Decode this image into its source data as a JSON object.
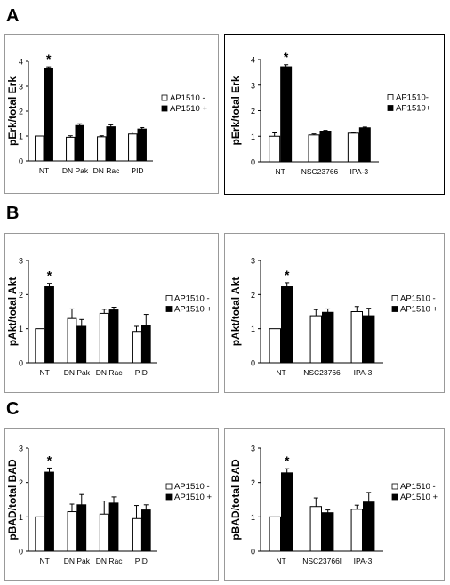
{
  "panels": [
    {
      "letter": "A"
    },
    {
      "letter": "B"
    },
    {
      "letter": "C"
    }
  ],
  "chart_data": [
    {
      "type": "bar",
      "ylabel": "pErk/total Erk",
      "ylim": [
        0,
        4
      ],
      "yticks": [
        0,
        1,
        2,
        3,
        4
      ],
      "categories": [
        "NT",
        "DN Pak",
        "DN Rac",
        "PID"
      ],
      "series": [
        {
          "name": "AP1510 -",
          "color": "#ffffff",
          "values": [
            1.0,
            0.95,
            0.97,
            1.08
          ],
          "errors": [
            0.0,
            0.06,
            0.04,
            0.08
          ]
        },
        {
          "name": "AP1510 +",
          "color": "#000000",
          "values": [
            3.7,
            1.42,
            1.37,
            1.28
          ],
          "errors": [
            0.08,
            0.07,
            0.08,
            0.06
          ]
        }
      ],
      "annotations": [
        {
          "category": "NT",
          "series": 1,
          "text": "*"
        }
      ],
      "legend": "right"
    },
    {
      "type": "bar",
      "ylabel": "pErk/total Erk",
      "ylim": [
        0,
        4
      ],
      "yticks": [
        0,
        1,
        2,
        3,
        4
      ],
      "categories": [
        "NT",
        "NSC23766",
        "IPA-3"
      ],
      "series": [
        {
          "name": "AP1510-",
          "color": "#ffffff",
          "values": [
            1.0,
            1.05,
            1.12
          ],
          "errors": [
            0.13,
            0.04,
            0.03
          ]
        },
        {
          "name": "AP1510+",
          "color": "#000000",
          "values": [
            3.72,
            1.2,
            1.33
          ],
          "errors": [
            0.08,
            0.03,
            0.03
          ]
        }
      ],
      "annotations": [
        {
          "category": "NT",
          "series": 1,
          "text": "*"
        }
      ],
      "legend": "right"
    },
    {
      "type": "bar",
      "ylabel": "pAkt/total Akt",
      "ylim": [
        0,
        3
      ],
      "yticks": [
        0,
        1,
        2,
        3
      ],
      "categories": [
        "NT",
        "DN Pak",
        "DN Rac",
        "PID"
      ],
      "series": [
        {
          "name": "AP1510 -",
          "color": "#ffffff",
          "values": [
            1.0,
            1.3,
            1.45,
            0.92
          ],
          "errors": [
            0.0,
            0.28,
            0.12,
            0.15
          ]
        },
        {
          "name": "AP1510 +",
          "color": "#000000",
          "values": [
            2.23,
            1.07,
            1.55,
            1.1
          ],
          "errors": [
            0.1,
            0.2,
            0.08,
            0.32
          ]
        }
      ],
      "annotations": [
        {
          "category": "NT",
          "series": 1,
          "text": "*"
        }
      ],
      "legend": "right"
    },
    {
      "type": "bar",
      "ylabel": "pAkt/total Akt",
      "ylim": [
        0,
        3
      ],
      "yticks": [
        0,
        1,
        2,
        3
      ],
      "categories": [
        "NT",
        "NSC23766",
        "IPA-3"
      ],
      "series": [
        {
          "name": "AP1510 -",
          "color": "#ffffff",
          "values": [
            1.0,
            1.38,
            1.5
          ],
          "errors": [
            0.0,
            0.18,
            0.15
          ]
        },
        {
          "name": "AP1510 +",
          "color": "#000000",
          "values": [
            2.23,
            1.48,
            1.38
          ],
          "errors": [
            0.12,
            0.1,
            0.22
          ]
        }
      ],
      "annotations": [
        {
          "category": "NT",
          "series": 1,
          "text": "*"
        }
      ],
      "legend": "right"
    },
    {
      "type": "bar",
      "ylabel": "pBAD/total BAD",
      "ylim": [
        0,
        3
      ],
      "yticks": [
        0,
        1,
        2,
        3
      ],
      "categories": [
        "NT",
        "DN Pak",
        "DN Rac",
        "PID"
      ],
      "series": [
        {
          "name": "AP1510 -",
          "color": "#ffffff",
          "values": [
            1.0,
            1.15,
            1.08,
            0.95
          ],
          "errors": [
            0.0,
            0.22,
            0.38,
            0.38
          ]
        },
        {
          "name": "AP1510 +",
          "color": "#000000",
          "values": [
            2.3,
            1.35,
            1.4,
            1.2
          ],
          "errors": [
            0.12,
            0.3,
            0.18,
            0.15
          ]
        }
      ],
      "annotations": [
        {
          "category": "NT",
          "series": 1,
          "text": "*"
        }
      ],
      "legend": "right"
    },
    {
      "type": "bar",
      "ylabel": "pBAD/total BAD",
      "ylim": [
        0,
        3
      ],
      "yticks": [
        0,
        1,
        2,
        3
      ],
      "categories": [
        "NT",
        "NSC23766l",
        "IPA-3"
      ],
      "series": [
        {
          "name": "AP1510 -",
          "color": "#ffffff",
          "values": [
            1.0,
            1.3,
            1.22
          ],
          "errors": [
            0.0,
            0.25,
            0.12
          ]
        },
        {
          "name": "AP1510 +",
          "color": "#000000",
          "values": [
            2.28,
            1.12,
            1.43
          ],
          "errors": [
            0.12,
            0.08,
            0.28
          ]
        }
      ],
      "annotations": [
        {
          "category": "NT",
          "series": 1,
          "text": "*"
        }
      ],
      "legend": "right"
    }
  ]
}
